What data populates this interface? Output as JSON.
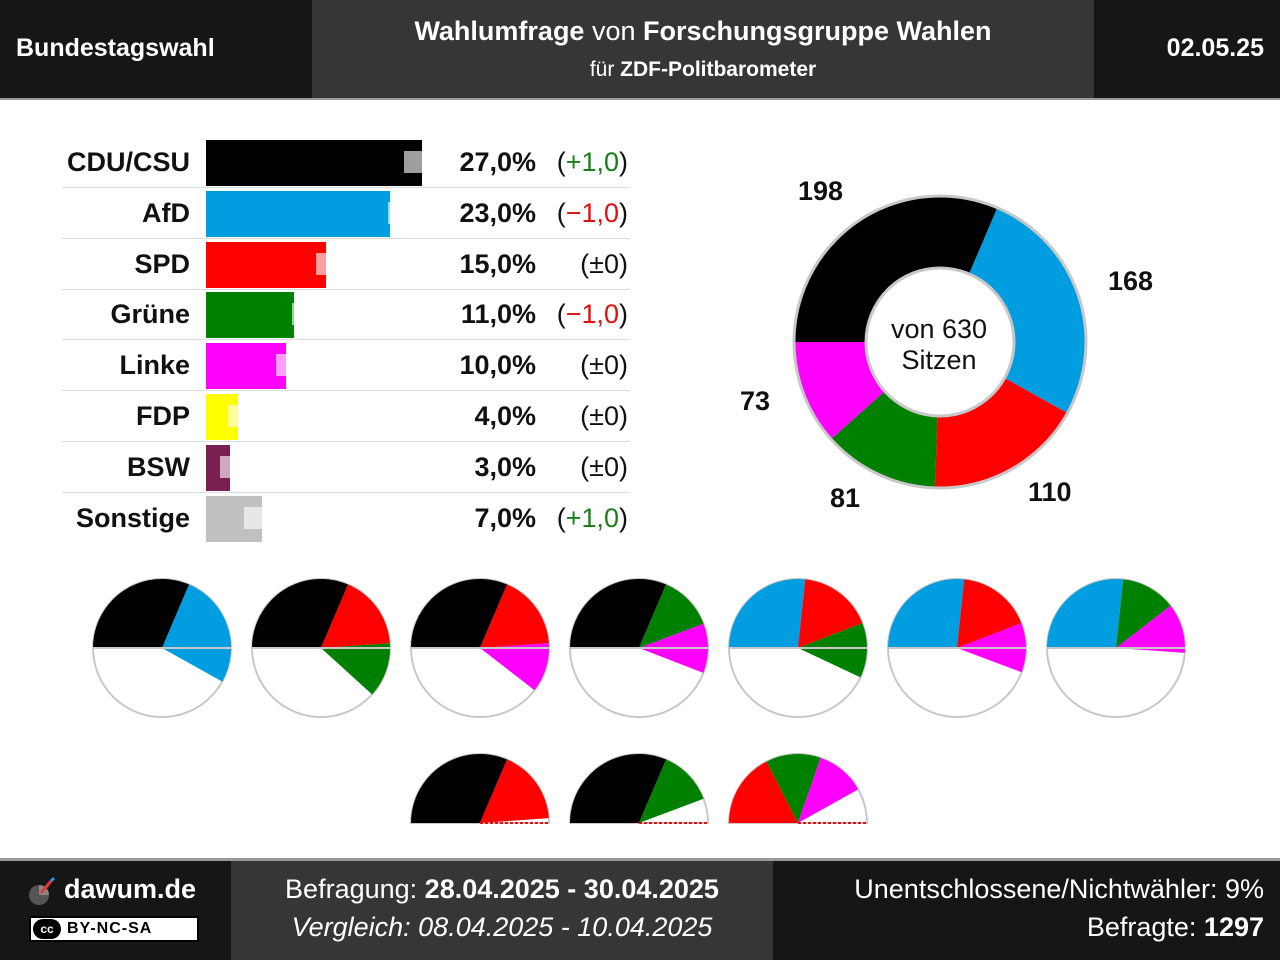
{
  "header": {
    "title": "Bundestagswahl",
    "poll_word": "Wahlumfrage",
    "von": "von",
    "institute": "Forschungsgruppe Wahlen",
    "fuer": "für",
    "client": "ZDF-Politbarometer",
    "date": "02.05.25"
  },
  "chart_data": [
    {
      "type": "bar",
      "orientation": "horizontal",
      "categories": [
        "CDU/CSU",
        "AfD",
        "SPD",
        "Grüne",
        "Linke",
        "FDP",
        "BSW",
        "Sonstige"
      ],
      "values": [
        27.0,
        23.0,
        15.0,
        11.0,
        10.0,
        4.0,
        3.0,
        7.0
      ],
      "previous_values": [
        26.0,
        24.0,
        15.0,
        12.0,
        10.0,
        4.0,
        3.0,
        6.0
      ],
      "value_labels": [
        "27,0%",
        "23,0%",
        "15,0%",
        "11,0%",
        "10,0%",
        "4,0%",
        "3,0%",
        "7,0%"
      ],
      "change_labels": [
        "(+1,0)",
        "(−1,0)",
        "(±0)",
        "(−1,0)",
        "(±0)",
        "(±0)",
        "(±0)",
        "(+1,0)"
      ],
      "change_direction": [
        "up",
        "down",
        "none",
        "down",
        "none",
        "none",
        "none",
        "up"
      ],
      "colors": [
        "#000000",
        "#009ee0",
        "#ff0000",
        "#008000",
        "#ff00ff",
        "#ffff00",
        "#7a2050",
        "#c0c0c0"
      ],
      "xlim": [
        0,
        30
      ]
    },
    {
      "type": "pie",
      "style": "donut",
      "categories": [
        "CDU/CSU",
        "AfD",
        "SPD",
        "Grüne",
        "Linke"
      ],
      "values": [
        198,
        168,
        110,
        81,
        73
      ],
      "colors": [
        "#000000",
        "#009ee0",
        "#ff0000",
        "#008000",
        "#ff00ff"
      ],
      "center_label_line1": "von 630",
      "center_label_line2": "Sitzen",
      "total": 630
    }
  ],
  "coalitions": {
    "full": [
      {
        "parties": [
          "CDU/CSU",
          "AfD"
        ],
        "seats": [
          198,
          168
        ]
      },
      {
        "parties": [
          "CDU/CSU",
          "SPD",
          "Grüne"
        ],
        "seats": [
          198,
          110,
          81
        ]
      },
      {
        "parties": [
          "CDU/CSU",
          "SPD",
          "Linke"
        ],
        "seats": [
          198,
          110,
          73
        ]
      },
      {
        "parties": [
          "CDU/CSU",
          "Grüne",
          "Linke"
        ],
        "seats": [
          198,
          81,
          73
        ]
      },
      {
        "parties": [
          "AfD",
          "SPD",
          "Grüne"
        ],
        "seats": [
          168,
          110,
          81
        ]
      },
      {
        "parties": [
          "AfD",
          "SPD",
          "Linke"
        ],
        "seats": [
          168,
          110,
          73
        ]
      },
      {
        "parties": [
          "AfD",
          "Grüne",
          "Linke"
        ],
        "seats": [
          168,
          81,
          73
        ]
      }
    ],
    "half": [
      {
        "parties": [
          "CDU/CSU",
          "SPD"
        ],
        "seats": [
          198,
          110
        ]
      },
      {
        "parties": [
          "CDU/CSU",
          "Grüne"
        ],
        "seats": [
          198,
          81
        ]
      },
      {
        "parties": [
          "SPD",
          "Grüne",
          "Linke"
        ],
        "seats": [
          110,
          81,
          73
        ]
      }
    ]
  },
  "footer": {
    "brand": "dawum.de",
    "license": "BY-NC-SA",
    "cc": "cc",
    "survey_label": "Befragung:",
    "survey_range": "28.04.2025 - 30.04.2025",
    "compare_label": "Vergleich:",
    "compare_range": "08.04.2025 - 10.04.2025",
    "undecided_label": "Unentschlossene/Nichtwähler:",
    "undecided_value": "9%",
    "respondents_label": "Befragte:",
    "respondents_value": "1297"
  }
}
